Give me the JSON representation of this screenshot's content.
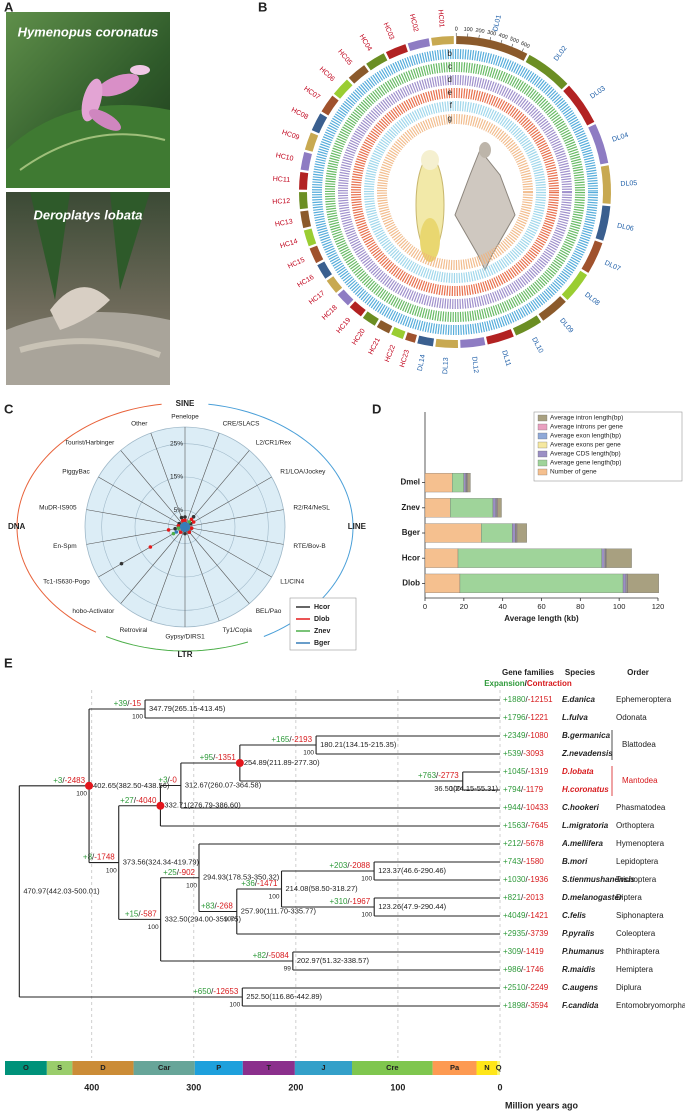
{
  "panel_labels": [
    "A",
    "B",
    "C",
    "D",
    "E"
  ],
  "photos": {
    "captions": [
      "Hymenopus coronatus",
      "Deroplatys lobata"
    ]
  },
  "circos": {
    "tracks": [
      {
        "letter": "a"
      },
      {
        "letter": "b",
        "color": "#3a9fd5"
      },
      {
        "letter": "c",
        "color": "#4daf4a"
      },
      {
        "letter": "d",
        "color": "#8e7cc3"
      },
      {
        "letter": "e",
        "color": "#e4572e"
      },
      {
        "letter": "f",
        "color": "#8fd0e8"
      },
      {
        "letter": "g",
        "color": "#f0b27a"
      }
    ],
    "DL_color": "#1f5fa8",
    "HC_color": "#c0001a",
    "DL": [
      {
        "name": "DL01",
        "length": 650,
        "ticks": [
          0,
          100,
          200,
          300,
          400,
          500,
          600
        ]
      },
      {
        "name": "DL02",
        "length": 420
      },
      {
        "name": "DL03",
        "length": 390
      },
      {
        "name": "DL04",
        "length": 360
      },
      {
        "name": "DL05",
        "length": 340
      },
      {
        "name": "DL06",
        "length": 310
      },
      {
        "name": "DL07",
        "length": 290
      },
      {
        "name": "DL08",
        "length": 280
      },
      {
        "name": "DL09",
        "length": 260
      },
      {
        "name": "DL10",
        "length": 250
      },
      {
        "name": "DL11",
        "length": 240
      },
      {
        "name": "DL12",
        "length": 220
      },
      {
        "name": "DL13",
        "length": 200
      },
      {
        "name": "DL14",
        "length": 140
      }
    ],
    "HC": [
      {
        "name": "HC01",
        "length": 200
      },
      {
        "name": "HC02",
        "length": 190
      },
      {
        "name": "HC03",
        "length": 185
      },
      {
        "name": "HC04",
        "length": 180
      },
      {
        "name": "HC05",
        "length": 175
      },
      {
        "name": "HC06",
        "length": 170
      },
      {
        "name": "HC07",
        "length": 168
      },
      {
        "name": "HC08",
        "length": 165
      },
      {
        "name": "HC09",
        "length": 160
      },
      {
        "name": "HC10",
        "length": 158
      },
      {
        "name": "HC11",
        "length": 155
      },
      {
        "name": "HC12",
        "length": 150
      },
      {
        "name": "HC13",
        "length": 148
      },
      {
        "name": "HC14",
        "length": 145
      },
      {
        "name": "HC15",
        "length": 140
      },
      {
        "name": "HC16",
        "length": 138
      },
      {
        "name": "HC17",
        "length": 135
      },
      {
        "name": "HC18",
        "length": 130
      },
      {
        "name": "HC19",
        "length": 128
      },
      {
        "name": "HC20",
        "length": 125
      },
      {
        "name": "HC21",
        "length": 120
      },
      {
        "name": "HC22",
        "length": 110
      },
      {
        "name": "HC23",
        "length": 90
      }
    ]
  },
  "chart_data": [
    {
      "type": "radar",
      "groups": [
        "SINE",
        "LINE",
        "LTR",
        "DNA"
      ],
      "categories": [
        "Penelope",
        "CRE/SLACS",
        "L2/CR1/Rex",
        "R1/LOA/Jockey",
        "R2/R4/NeSL",
        "RTE/Bov-B",
        "L1/CIN4",
        "BEL/Pao",
        "Ty1/Copia",
        "Gypsy/DIRS1",
        "Retroviral",
        "hobo-Activator",
        "Tc1-IS630-Pogo",
        "En-Spm",
        "MuDR-IS905",
        "PiggyBac",
        "Tourist/Harbinger",
        "Other"
      ],
      "rlim": [
        0,
        30
      ],
      "rticks": [
        {
          "value": 5,
          "label": "5%"
        },
        {
          "value": 15,
          "label": "15%"
        },
        {
          "value": 25,
          "label": "25%"
        }
      ],
      "series": [
        {
          "name": "Hcor",
          "color": "#333333",
          "values": [
            3,
            1,
            4,
            2,
            1,
            2,
            1,
            2,
            1,
            2,
            0.5,
            1,
            22,
            3,
            2,
            2,
            1,
            3
          ]
        },
        {
          "name": "Dlob",
          "color": "#e41a1c",
          "values": [
            2,
            1,
            3,
            3,
            1,
            2,
            1,
            2,
            1,
            1,
            0.5,
            2,
            12,
            5,
            2,
            1,
            1,
            2
          ]
        },
        {
          "name": "Znev",
          "color": "#4daf4a",
          "values": [
            1,
            0.5,
            2,
            1,
            0.5,
            1,
            1,
            1,
            0.5,
            1,
            0.3,
            1,
            4,
            2,
            1,
            1,
            0.5,
            1
          ]
        },
        {
          "name": "Bger",
          "color": "#377eb8",
          "values": [
            1,
            0.5,
            1,
            1,
            1,
            1,
            0.5,
            1,
            0.5,
            1,
            0.3,
            1,
            3,
            1,
            1,
            1,
            0.5,
            1
          ]
        }
      ]
    },
    {
      "type": "stacked_barh",
      "categories": [
        "Dmel",
        "Znev",
        "Bger",
        "Hcor",
        "Dlob"
      ],
      "xlabel": "Average length (kb)",
      "xlim": [
        0,
        120
      ],
      "xticks": [
        0,
        20,
        40,
        60,
        80,
        100,
        120
      ],
      "series": [
        {
          "name": "Number of gene",
          "color": "#f5c08f",
          "values": [
            14,
            13,
            29,
            17,
            18
          ]
        },
        {
          "name": "Average gene length(bp)",
          "color": "#9fd49a",
          "values": [
            6,
            22,
            16,
            74,
            84
          ]
        },
        {
          "name": "Average CDS length(bp)",
          "color": "#9b8fc4",
          "values": [
            1,
            1.5,
            1.5,
            1.5,
            1.5
          ]
        },
        {
          "name": "Average exons per gene",
          "color": "#f5e8a0",
          "values": [
            0.3,
            0.3,
            0.3,
            0.3,
            0.3
          ]
        },
        {
          "name": "Average exon length(bp)",
          "color": "#8fa9d8",
          "values": [
            0.3,
            0.3,
            0.3,
            0.3,
            0.3
          ]
        },
        {
          "name": "Average introns per gene",
          "color": "#e9a0c0",
          "values": [
            0.3,
            0.3,
            0.3,
            0.3,
            0.3
          ]
        },
        {
          "name": "Average intron length(bp)",
          "color": "#a8a080",
          "values": [
            1.5,
            2,
            5,
            13,
            16
          ]
        }
      ]
    }
  ],
  "tree": {
    "header": {
      "gene_families": "Gene families",
      "expansion": "Expansion",
      "contraction": "Contraction",
      "species": "Species",
      "order": "Order"
    },
    "separator": "/",
    "gain_color": "#2e9a3a",
    "loss_color": "#d7191c",
    "species": [
      {
        "gain": "+1880",
        "loss": "-12151",
        "name": "E.danica",
        "order": "Ephemeroptera"
      },
      {
        "gain": "+1796",
        "loss": "-1221",
        "name": "L.fulva",
        "order": "Odonata"
      },
      {
        "gain": "+2349",
        "loss": "-1080",
        "name": "B.germanica"
      },
      {
        "gain": "+539",
        "loss": "-3093",
        "name": "Z.nevadensis"
      },
      {
        "gain": "+1045",
        "loss": "-1319",
        "name": "D.lobata",
        "color": "#d7191c"
      },
      {
        "gain": "+794",
        "loss": "-1179",
        "name": "H.coronatus",
        "color": "#d7191c"
      },
      {
        "gain": "+944",
        "loss": "-10433",
        "name": "C.hookeri",
        "order": "Phasmatodea"
      },
      {
        "gain": "+1563",
        "loss": "-7645",
        "name": "L.migratoria",
        "order": "Orthoptera"
      },
      {
        "gain": "+212",
        "loss": "-5678",
        "name": "A.mellifera",
        "order": "Hymenoptera"
      },
      {
        "gain": "+743",
        "loss": "-1580",
        "name": "B.mori",
        "order": "Lepidoptera"
      },
      {
        "gain": "+1030",
        "loss": "-1936",
        "name": "S.tienmushanensis",
        "order": "Trichoptera"
      },
      {
        "gain": "+821",
        "loss": "-2013",
        "name": "D.melanogaster",
        "order": "Diptera"
      },
      {
        "gain": "+4049",
        "loss": "-1421",
        "name": "C.felis",
        "order": "Siphonaptera"
      },
      {
        "gain": "+2935",
        "loss": "-3739",
        "name": "P.pyralis",
        "order": "Coleoptera"
      },
      {
        "gain": "+309",
        "loss": "-1419",
        "name": "P.humanus",
        "order": "Phthiraptera"
      },
      {
        "gain": "+986",
        "loss": "-1746",
        "name": "R.maidis",
        "order": "Hemiptera"
      },
      {
        "gain": "+2510",
        "loss": "-2249",
        "name": "C.augens",
        "order": "Diplura"
      },
      {
        "gain": "+1898",
        "loss": "-3594",
        "name": "F.candida",
        "order": "Entomobryomorpha"
      }
    ],
    "order_groups": [
      {
        "name": "Blattodea",
        "species": [
          2,
          3
        ]
      },
      {
        "name": "Mantodea",
        "species": [
          4,
          5
        ],
        "color": "#d7191c"
      }
    ],
    "root": {
      "label": "470.97(442.03-500.01)",
      "age": 470.97,
      "children": [
        {
          "label": "402.65(382.50-438.56)",
          "age": 402.65,
          "bootstrap": "100",
          "gain": "+3",
          "loss": "-2483",
          "calibrated": true,
          "children": [
            {
              "label": "347.79(265.15-413.45)",
              "age": 347.79,
              "bootstrap": "100",
              "gain": "+39",
              "loss": "-15",
              "children": [
                0,
                1
              ]
            },
            {
              "label": "373.56(324.34-419.79)",
              "age": 373.56,
              "bootstrap": "100",
              "gain": "+8",
              "loss": "-1748",
              "children": [
                {
                  "label": "332.71(276.79-386.60)",
                  "age": 332.71,
                  "gain": "+27",
                  "loss": "-4040",
                  "calibrated": true,
                  "children": [
                    {
                      "label": "312.67(260.07-364.58)",
                      "age": 312.67,
                      "gain": "+3",
                      "loss": "-0",
                      "children": [
                        {
                          "label": "254.89(211.89-277.30)",
                          "age": 254.89,
                          "gain": "+95",
                          "loss": "-1351",
                          "calibrated": true,
                          "children": [
                            {
                              "label": "180.21(134.15-215.35)",
                              "age": 180.21,
                              "bootstrap": "100",
                              "gain": "+165",
                              "loss": "-2193",
                              "children": [
                                2,
                                3
                              ]
                            },
                            {
                              "label": "36.50(24.15-55.31)",
                              "age": 36.5,
                              "bootstrap": "100",
                              "gain": "+763",
                              "loss": "-2773",
                              "children": [
                                4,
                                5
                              ]
                            }
                          ]
                        },
                        6
                      ]
                    },
                    7
                  ]
                },
                {
                  "label": "332.50(294.00-359.75)",
                  "age": 332.5,
                  "bootstrap": "100",
                  "gain": "+15",
                  "loss": "-587",
                  "children": [
                    {
                      "label": "294.93(178.53-350.32)",
                      "age": 294.93,
                      "bootstrap": "100",
                      "gain": "+25",
                      "loss": "-902",
                      "children": [
                        8,
                        {
                          "label": "257.90(111.70-335.77)",
                          "age": 257.9,
                          "bootstrap": "100",
                          "gain": "+83",
                          "loss": "-268",
                          "children": [
                            {
                              "label": "214.08(58.50-318.27)",
                              "age": 214.08,
                              "bootstrap": "100",
                              "gain": "+36",
                              "loss": "-1471",
                              "children": [
                                {
                                  "label": "123.37(46.6-290.46)",
                                  "age": 123.37,
                                  "bootstrap": "100",
                                  "gain": "+203",
                                  "loss": "-2088",
                                  "children": [
                                    9,
                                    10
                                  ]
                                },
                                {
                                  "label": "123.26(47.9-290.44)",
                                  "age": 123.26,
                                  "bootstrap": "100",
                                  "gain": "+310",
                                  "loss": "-1967",
                                  "children": [
                                    11,
                                    12
                                  ]
                                }
                              ]
                            },
                            13
                          ]
                        }
                      ]
                    },
                    {
                      "label": "202.97(51.32-338.57)",
                      "age": 202.97,
                      "bootstrap": "99",
                      "gain": "+82",
                      "loss": "-5084",
                      "children": [
                        14,
                        15
                      ]
                    }
                  ]
                }
              ]
            }
          ]
        },
        {
          "label": "252.50(116.86-442.89)",
          "age": 252.5,
          "bootstrap": "100",
          "gain": "+650",
          "loss": "-12653",
          "children": [
            16,
            17
          ]
        }
      ]
    },
    "axis": {
      "label": "Million years ago",
      "xlim": [
        485,
        0
      ],
      "ticks": [
        400,
        300,
        200,
        100,
        0
      ]
    },
    "periods": [
      {
        "name": "O",
        "start": 485,
        "end": 444,
        "color": "#00927a"
      },
      {
        "name": "S",
        "start": 444,
        "end": 419,
        "color": "#9acd6b"
      },
      {
        "name": "D",
        "start": 419,
        "end": 359,
        "color": "#cb8c37"
      },
      {
        "name": "Car",
        "start": 359,
        "end": 299,
        "color": "#67a599"
      },
      {
        "name": "P",
        "start": 299,
        "end": 252,
        "color": "#1ea0dc"
      },
      {
        "name": "T",
        "start": 252,
        "end": 201,
        "color": "#8b2f8c"
      },
      {
        "name": "J",
        "start": 201,
        "end": 145,
        "color": "#34a0c9"
      },
      {
        "name": "Cre",
        "start": 145,
        "end": 66,
        "color": "#7fc64e"
      },
      {
        "name": "Pa",
        "start": 66,
        "end": 23,
        "color": "#fd9a52"
      },
      {
        "name": "N",
        "start": 23,
        "end": 2.6,
        "color": "#ffe619"
      },
      {
        "name": "Q",
        "start": 2.6,
        "end": 0,
        "color": "#f9f97f"
      }
    ]
  }
}
